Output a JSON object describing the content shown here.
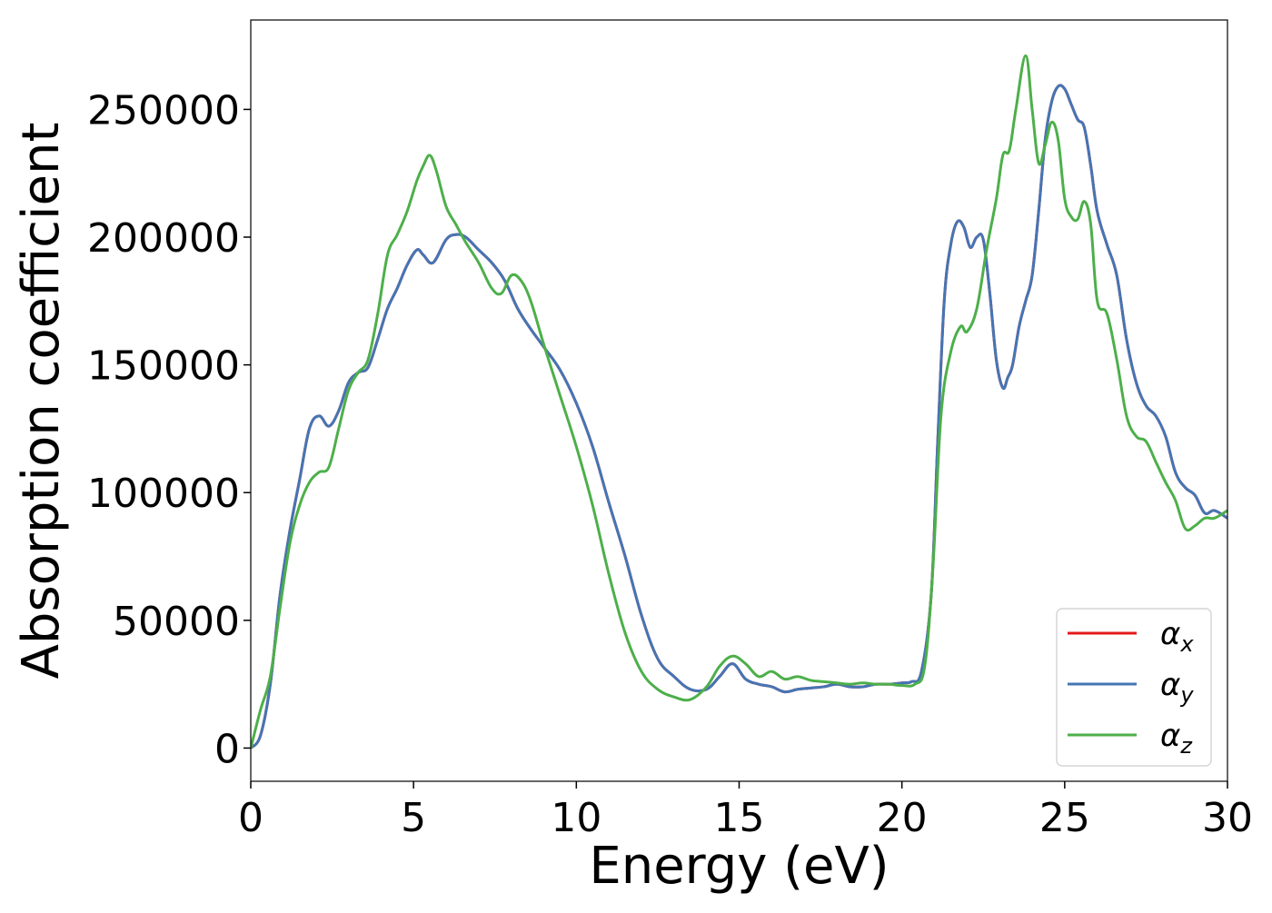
{
  "chart_data": {
    "type": "line",
    "title": "",
    "xlabel": "Energy (eV)",
    "ylabel": "Absorption coefficient",
    "xlim": [
      0,
      30
    ],
    "ylim": [
      -13000,
      285000
    ],
    "xticks": [
      0,
      5,
      10,
      15,
      20,
      25,
      30
    ],
    "xtick_labels": [
      "0",
      "5",
      "10",
      "15",
      "20",
      "25",
      "30"
    ],
    "yticks": [
      0,
      50000,
      100000,
      150000,
      200000,
      250000
    ],
    "ytick_labels": [
      "0",
      "50000",
      "100000",
      "150000",
      "200000",
      "250000"
    ],
    "grid": false,
    "legend_position": "lower-right",
    "series": [
      {
        "name": "α_x",
        "color": "#e41a1c",
        "x": [
          0,
          0.3,
          0.6,
          0.9,
          1.2,
          1.5,
          1.8,
          2.1,
          2.4,
          2.7,
          3.0,
          3.3,
          3.6,
          3.9,
          4.2,
          4.5,
          4.8,
          5.1,
          5.3,
          5.6,
          6.0,
          6.3,
          6.6,
          7.0,
          7.4,
          7.8,
          8.2,
          8.6,
          9.0,
          9.5,
          10.0,
          10.5,
          11.0,
          11.5,
          12.0,
          12.5,
          13.0,
          13.5,
          14.0,
          14.4,
          14.8,
          15.2,
          15.6,
          16.0,
          16.4,
          16.8,
          17.2,
          17.6,
          18.0,
          18.4,
          18.8,
          19.2,
          19.6,
          20.0,
          20.3,
          20.6,
          20.9,
          21.1,
          21.3,
          21.5,
          21.7,
          21.9,
          22.1,
          22.3,
          22.5,
          22.7,
          22.9,
          23.1,
          23.25,
          23.4,
          23.6,
          23.8,
          24.0,
          24.2,
          24.4,
          24.6,
          24.8,
          25.0,
          25.2,
          25.4,
          25.6,
          25.8,
          26.0,
          26.3,
          26.6,
          26.9,
          27.2,
          27.5,
          27.8,
          28.1,
          28.4,
          28.7,
          29.0,
          29.3,
          29.6,
          30.0
        ],
        "y": [
          0,
          5000,
          25000,
          60000,
          85000,
          105000,
          125000,
          130000,
          126000,
          132000,
          143000,
          147000,
          149000,
          160000,
          172000,
          180000,
          189000,
          195000,
          193000,
          190000,
          199000,
          201000,
          200000,
          195000,
          190000,
          183000,
          172000,
          164000,
          157000,
          148000,
          135000,
          118000,
          96000,
          75000,
          52000,
          35000,
          28000,
          23000,
          23000,
          28000,
          33000,
          27000,
          25000,
          24000,
          22000,
          23000,
          23500,
          24000,
          25000,
          24000,
          24000,
          25000,
          25000,
          25500,
          26000,
          30000,
          60000,
          120000,
          175000,
          197000,
          206000,
          204000,
          196000,
          200000,
          199000,
          178000,
          152000,
          141000,
          145000,
          150000,
          165000,
          175000,
          185000,
          210000,
          238000,
          253000,
          259000,
          258000,
          252000,
          246000,
          243000,
          228000,
          210000,
          197000,
          185000,
          160000,
          143000,
          134000,
          130000,
          122000,
          108000,
          102000,
          99000,
          92000,
          93000,
          90000
        ]
      },
      {
        "name": "α_y",
        "color": "#4575b4",
        "x": [
          0,
          0.3,
          0.6,
          0.9,
          1.2,
          1.5,
          1.8,
          2.1,
          2.4,
          2.7,
          3.0,
          3.3,
          3.6,
          3.9,
          4.2,
          4.5,
          4.8,
          5.1,
          5.3,
          5.6,
          6.0,
          6.3,
          6.6,
          7.0,
          7.4,
          7.8,
          8.2,
          8.6,
          9.0,
          9.5,
          10.0,
          10.5,
          11.0,
          11.5,
          12.0,
          12.5,
          13.0,
          13.5,
          14.0,
          14.4,
          14.8,
          15.2,
          15.6,
          16.0,
          16.4,
          16.8,
          17.2,
          17.6,
          18.0,
          18.4,
          18.8,
          19.2,
          19.6,
          20.0,
          20.3,
          20.6,
          20.9,
          21.1,
          21.3,
          21.5,
          21.7,
          21.9,
          22.1,
          22.3,
          22.5,
          22.7,
          22.9,
          23.1,
          23.25,
          23.4,
          23.6,
          23.8,
          24.0,
          24.2,
          24.4,
          24.6,
          24.8,
          25.0,
          25.2,
          25.4,
          25.6,
          25.8,
          26.0,
          26.3,
          26.6,
          26.9,
          27.2,
          27.5,
          27.8,
          28.1,
          28.4,
          28.7,
          29.0,
          29.3,
          29.6,
          30.0
        ],
        "y": [
          0,
          5000,
          25000,
          60000,
          85000,
          105000,
          125000,
          130000,
          126000,
          132000,
          143000,
          147000,
          149000,
          160000,
          172000,
          180000,
          189000,
          195000,
          193000,
          190000,
          199000,
          201000,
          200000,
          195000,
          190000,
          183000,
          172000,
          164000,
          157000,
          148000,
          135000,
          118000,
          96000,
          75000,
          52000,
          35000,
          28000,
          23000,
          23000,
          28000,
          33000,
          27000,
          25000,
          24000,
          22000,
          23000,
          23500,
          24000,
          25000,
          24000,
          24000,
          25000,
          25000,
          25500,
          26000,
          30000,
          60000,
          120000,
          175000,
          197000,
          206000,
          204000,
          196000,
          200000,
          199000,
          178000,
          152000,
          141000,
          145000,
          150000,
          165000,
          175000,
          185000,
          210000,
          238000,
          253000,
          259000,
          258000,
          252000,
          246000,
          243000,
          228000,
          210000,
          197000,
          185000,
          160000,
          143000,
          134000,
          130000,
          122000,
          108000,
          102000,
          99000,
          92000,
          93000,
          90000
        ]
      },
      {
        "name": "α_z",
        "color": "#4daf4a",
        "x": [
          0,
          0.3,
          0.6,
          0.9,
          1.2,
          1.5,
          1.8,
          2.1,
          2.4,
          2.7,
          3.0,
          3.3,
          3.6,
          3.9,
          4.2,
          4.5,
          4.8,
          5.1,
          5.3,
          5.5,
          5.7,
          6.0,
          6.3,
          6.6,
          7.0,
          7.4,
          7.7,
          8.0,
          8.3,
          8.6,
          9.0,
          9.5,
          10.0,
          10.5,
          11.0,
          11.5,
          12.0,
          12.5,
          13.0,
          13.5,
          14.0,
          14.4,
          14.8,
          15.2,
          15.6,
          16.0,
          16.4,
          16.8,
          17.2,
          17.6,
          18.0,
          18.4,
          18.8,
          19.2,
          19.6,
          20.0,
          20.4,
          20.7,
          20.95,
          21.2,
          21.5,
          21.8,
          22.0,
          22.3,
          22.6,
          22.9,
          23.1,
          23.3,
          23.5,
          23.8,
          24.0,
          24.2,
          24.4,
          24.6,
          24.8,
          25.0,
          25.2,
          25.4,
          25.6,
          25.8,
          26.0,
          26.3,
          26.6,
          26.9,
          27.2,
          27.5,
          27.8,
          28.1,
          28.4,
          28.7,
          29.0,
          29.3,
          29.6,
          30.0
        ],
        "y": [
          0,
          15000,
          28000,
          55000,
          80000,
          95000,
          104000,
          108000,
          110000,
          125000,
          140000,
          147000,
          152000,
          170000,
          193000,
          201000,
          210000,
          222000,
          228000,
          232000,
          226000,
          212000,
          205000,
          198000,
          190000,
          180000,
          178000,
          185000,
          183000,
          175000,
          158000,
          138000,
          118000,
          95000,
          68000,
          45000,
          30000,
          23000,
          20000,
          19000,
          24000,
          32000,
          36000,
          33000,
          28000,
          30000,
          27000,
          28000,
          26500,
          26000,
          25500,
          25000,
          25500,
          25000,
          25000,
          24500,
          25000,
          32000,
          70000,
          130000,
          155000,
          165000,
          163000,
          172000,
          195000,
          215000,
          232000,
          234000,
          250000,
          271000,
          250000,
          229000,
          236000,
          245000,
          238000,
          215000,
          208000,
          207000,
          214000,
          205000,
          175000,
          170000,
          152000,
          130000,
          122000,
          120000,
          112000,
          104000,
          97000,
          86000,
          87000,
          90000,
          90000,
          93000
        ]
      }
    ]
  }
}
